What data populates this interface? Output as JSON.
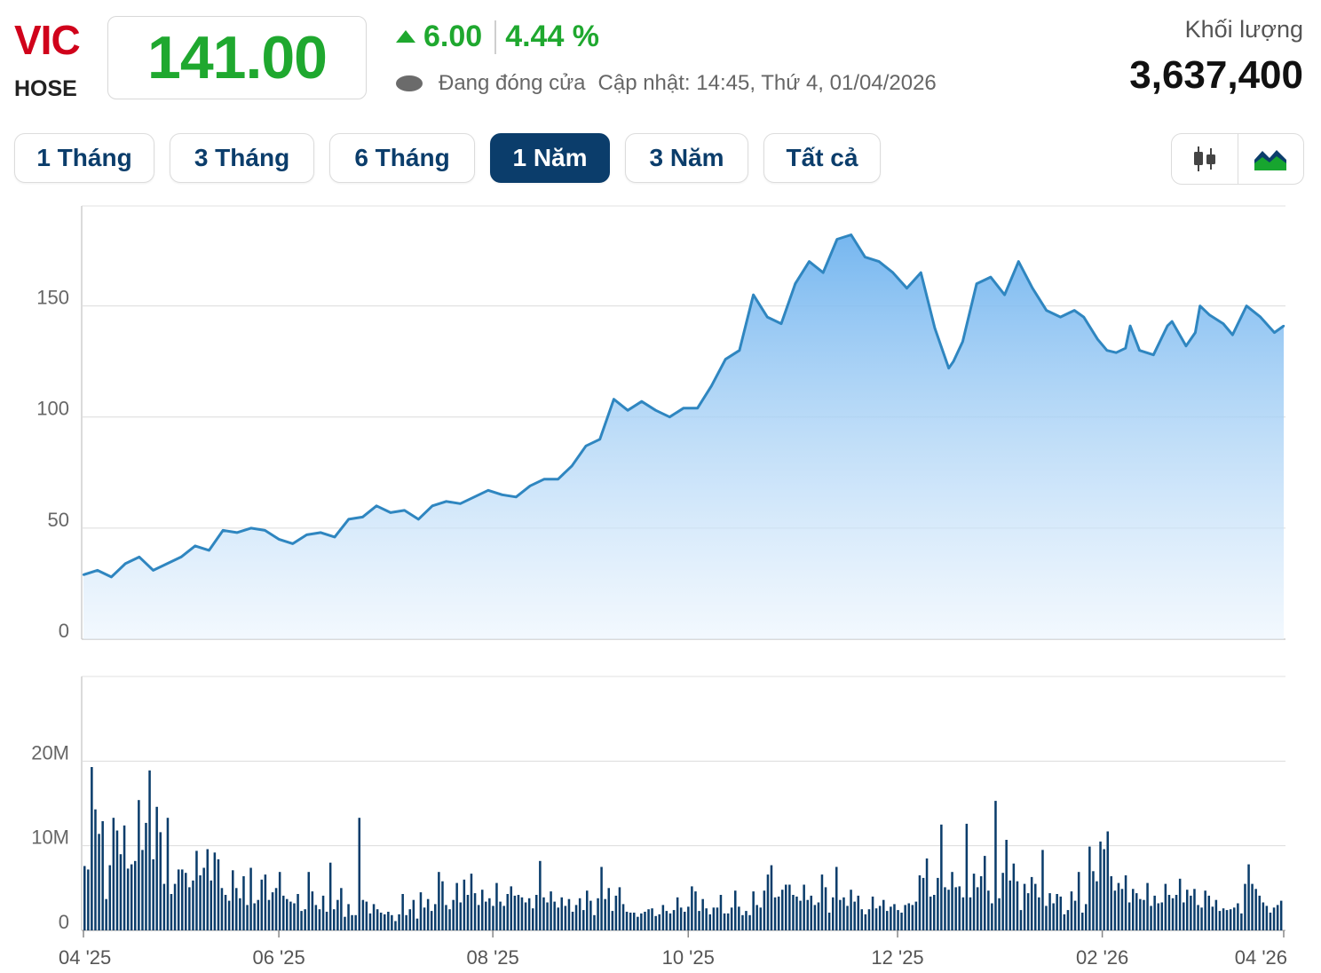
{
  "header": {
    "ticker": "VIC",
    "exchange": "HOSE",
    "price": "141.00",
    "change": "6.00",
    "change_pct": "4.44 %",
    "status": "Đang đóng cửa",
    "updated": "Cập nhật: 14:45, Thứ 4, 01/04/2026",
    "volume_label": "Khối lượng",
    "volume_value": "3,637,400"
  },
  "colors": {
    "up": "#1fa82f",
    "ticker": "#d0021b",
    "accent": "#0b3d6b",
    "line": "#2f86c0",
    "area": "#7dbcf0",
    "volume_bar": "#0b3d6b"
  },
  "range_tabs": [
    {
      "label": "1 Tháng",
      "active": false
    },
    {
      "label": "3 Tháng",
      "active": false
    },
    {
      "label": "6 Tháng",
      "active": false
    },
    {
      "label": "1 Năm",
      "active": true
    },
    {
      "label": "3 Năm",
      "active": false
    },
    {
      "label": "Tất cả",
      "active": false
    }
  ],
  "chart_mode_icons": [
    "candlestick-icon",
    "area-chart-icon"
  ],
  "chart_data": [
    {
      "type": "area",
      "ylim": [
        0,
        195
      ],
      "yticks": [
        0,
        50,
        100,
        150
      ],
      "grid": true,
      "xticks": [
        {
          "label": "04 '25",
          "x": 0
        },
        {
          "label": "06 '25",
          "x": 42
        },
        {
          "label": "08 '25",
          "x": 88
        },
        {
          "label": "10 '25",
          "x": 130
        },
        {
          "label": "12 '25",
          "x": 175
        },
        {
          "label": "02 '26",
          "x": 219
        },
        {
          "label": "04 '26",
          "x": 258
        }
      ],
      "x": [
        0,
        3,
        6,
        9,
        12,
        15,
        18,
        21,
        24,
        27,
        30,
        33,
        36,
        39,
        42,
        45,
        48,
        51,
        54,
        57,
        60,
        63,
        66,
        69,
        72,
        75,
        78,
        81,
        84,
        87,
        90,
        93,
        96,
        99,
        102,
        105,
        108,
        111,
        114,
        117,
        120,
        123,
        126,
        129,
        132,
        135,
        138,
        141,
        144,
        147,
        150,
        153,
        156,
        159,
        162,
        165,
        168,
        171,
        174,
        177,
        180,
        183,
        186,
        187,
        189,
        192,
        195,
        198,
        201,
        204,
        207,
        210,
        212,
        213,
        215,
        218,
        220,
        222,
        224,
        225,
        227,
        230,
        233,
        234,
        237,
        239,
        240,
        242,
        245,
        247,
        250,
        253,
        256,
        258
      ],
      "values": [
        29,
        31,
        28,
        34,
        37,
        31,
        34,
        37,
        42,
        40,
        49,
        48,
        50,
        49,
        45,
        43,
        47,
        48,
        46,
        54,
        55,
        60,
        57,
        58,
        54,
        60,
        62,
        61,
        64,
        67,
        65,
        64,
        69,
        72,
        72,
        78,
        87,
        90,
        108,
        103,
        107,
        103,
        100,
        104,
        104,
        114,
        126,
        130,
        155,
        145,
        142,
        160,
        170,
        165,
        180,
        182,
        172,
        170,
        165,
        158,
        165,
        140,
        122,
        125,
        134,
        160,
        163,
        155,
        170,
        158,
        148,
        145,
        147,
        148,
        145,
        135,
        130,
        129,
        131,
        141,
        130,
        128,
        141,
        143,
        132,
        138,
        150,
        146,
        142,
        137,
        150,
        145,
        138,
        141
      ]
    },
    {
      "type": "bar",
      "ylabel": "",
      "ylim": [
        0,
        30
      ],
      "yticks": [
        {
          "value": 0,
          "label": "0"
        },
        {
          "value": 10,
          "label": "10M"
        },
        {
          "value": 20,
          "label": "20M"
        }
      ],
      "grid": true,
      "values_millions": [
        7.6,
        7.2,
        19.3,
        14.3,
        11.4,
        12.9,
        3.7,
        7.7,
        13.3,
        11.8,
        9.0,
        12.4,
        7.3,
        7.8,
        8.2,
        15.4,
        9.5,
        12.7,
        18.9,
        8.4,
        14.6,
        11.6,
        5.5,
        13.3,
        4.3,
        5.5,
        7.2,
        7.2,
        6.8,
        5.1,
        5.9,
        9.4,
        6.5,
        7.4,
        9.6,
        5.9,
        9.2,
        8.4,
        5.0,
        4.2,
        3.5,
        7.1,
        5.0,
        3.8,
        6.4,
        3.0,
        7.4,
        3.2,
        3.6,
        6.0,
        6.6,
        3.6,
        4.5,
        5.0,
        6.9,
        4.1,
        3.7,
        3.4,
        3.2,
        4.3,
        2.3,
        2.5,
        6.9,
        4.6,
        3.0,
        2.5,
        4.1,
        2.2,
        8.0,
        2.5,
        3.6,
        5.0,
        1.6,
        3.1,
        1.8,
        1.8,
        13.3,
        3.6,
        3.4,
        2.0,
        3.1,
        2.5,
        2.1,
        1.9,
        2.2,
        1.8,
        1.1,
        1.9,
        4.3,
        1.8,
        2.5,
        3.6,
        1.4,
        4.5,
        2.7,
        3.7,
        2.3,
        3.1,
        6.9,
        5.8,
        3.0,
        2.5,
        3.6,
        5.6,
        3.3,
        6.0,
        4.2,
        6.7,
        4.4,
        3.0,
        4.8,
        3.4,
        3.8,
        2.9,
        5.6,
        3.4,
        2.9,
        4.3,
        5.2,
        4.1,
        4.2,
        3.9,
        3.3,
        3.8,
        2.6,
        4.2,
        8.2,
        3.9,
        3.3,
        4.6,
        3.4,
        2.7,
        3.9,
        2.9,
        3.7,
        2.2,
        3.0,
        3.8,
        2.4,
        4.7,
        3.5,
        1.8,
        3.8,
        7.5,
        3.7,
        5.0,
        2.3,
        4.1,
        5.1,
        3.1,
        2.2,
        2.1,
        2.1,
        1.6,
        2.0,
        2.2,
        2.5,
        2.6,
        1.7,
        1.9,
        3.0,
        2.3,
        2.0,
        2.4,
        3.9,
        2.7,
        2.2,
        2.8,
        5.2,
        4.6,
        2.3,
        3.7,
        2.6,
        1.9,
        2.7,
        2.7,
        4.2,
        2.0,
        2.0,
        2.7,
        4.7,
        2.8,
        1.8,
        2.3,
        1.8,
        4.6,
        3.0,
        2.7,
        4.7,
        6.6,
        7.7,
        3.9,
        4.0,
        4.8,
        5.4,
        5.4,
        4.2,
        4.0,
        3.5,
        5.4,
        3.6,
        4.1,
        3.0,
        3.3,
        6.6,
        5.1,
        2.1,
        3.9,
        7.5,
        3.6,
        3.9,
        2.9,
        4.8,
        3.4,
        4.1,
        2.5,
        1.9,
        2.5,
        4.0,
        2.6,
        2.9,
        3.6,
        2.3,
        2.8,
        3.1,
        2.4,
        2.1,
        3.0,
        3.2,
        3.0,
        3.4,
        6.5,
        6.2,
        8.5,
        4.0,
        4.2,
        6.2,
        12.5,
        5.1,
        4.8,
        6.9,
        5.1,
        5.2,
        3.9,
        12.6,
        3.9,
        6.7,
        5.1,
        6.4,
        8.8,
        4.7,
        3.2,
        15.3,
        3.8,
        6.8,
        10.7,
        5.9,
        7.9,
        5.8,
        2.4,
        5.5,
        4.4,
        6.3,
        5.5,
        3.9,
        9.5,
        2.9,
        4.4,
        3.2,
        4.3,
        4.0,
        1.9,
        2.4,
        4.6,
        3.5,
        6.9,
        2.1,
        3.1,
        9.9,
        7.0,
        5.8,
        10.5,
        9.6,
        11.7,
        6.4,
        4.7,
        5.6,
        4.9,
        6.5,
        3.3,
        4.9,
        4.4,
        3.7,
        3.6,
        5.6,
        2.9,
        4.1,
        3.2,
        3.3,
        5.5,
        4.2,
        3.8,
        4.2,
        6.1,
        3.3,
        4.8,
        4.1,
        4.9,
        3.0,
        2.7,
        4.7,
        4.1,
        2.8,
        3.6,
        2.3,
        2.6,
        2.4,
        2.5,
        2.7,
        3.2,
        2.0,
        5.5,
        7.8,
        5.5,
        4.9,
        4.1,
        3.3,
        2.9,
        2.1,
        2.7,
        3.0,
        3.5
      ]
    }
  ]
}
